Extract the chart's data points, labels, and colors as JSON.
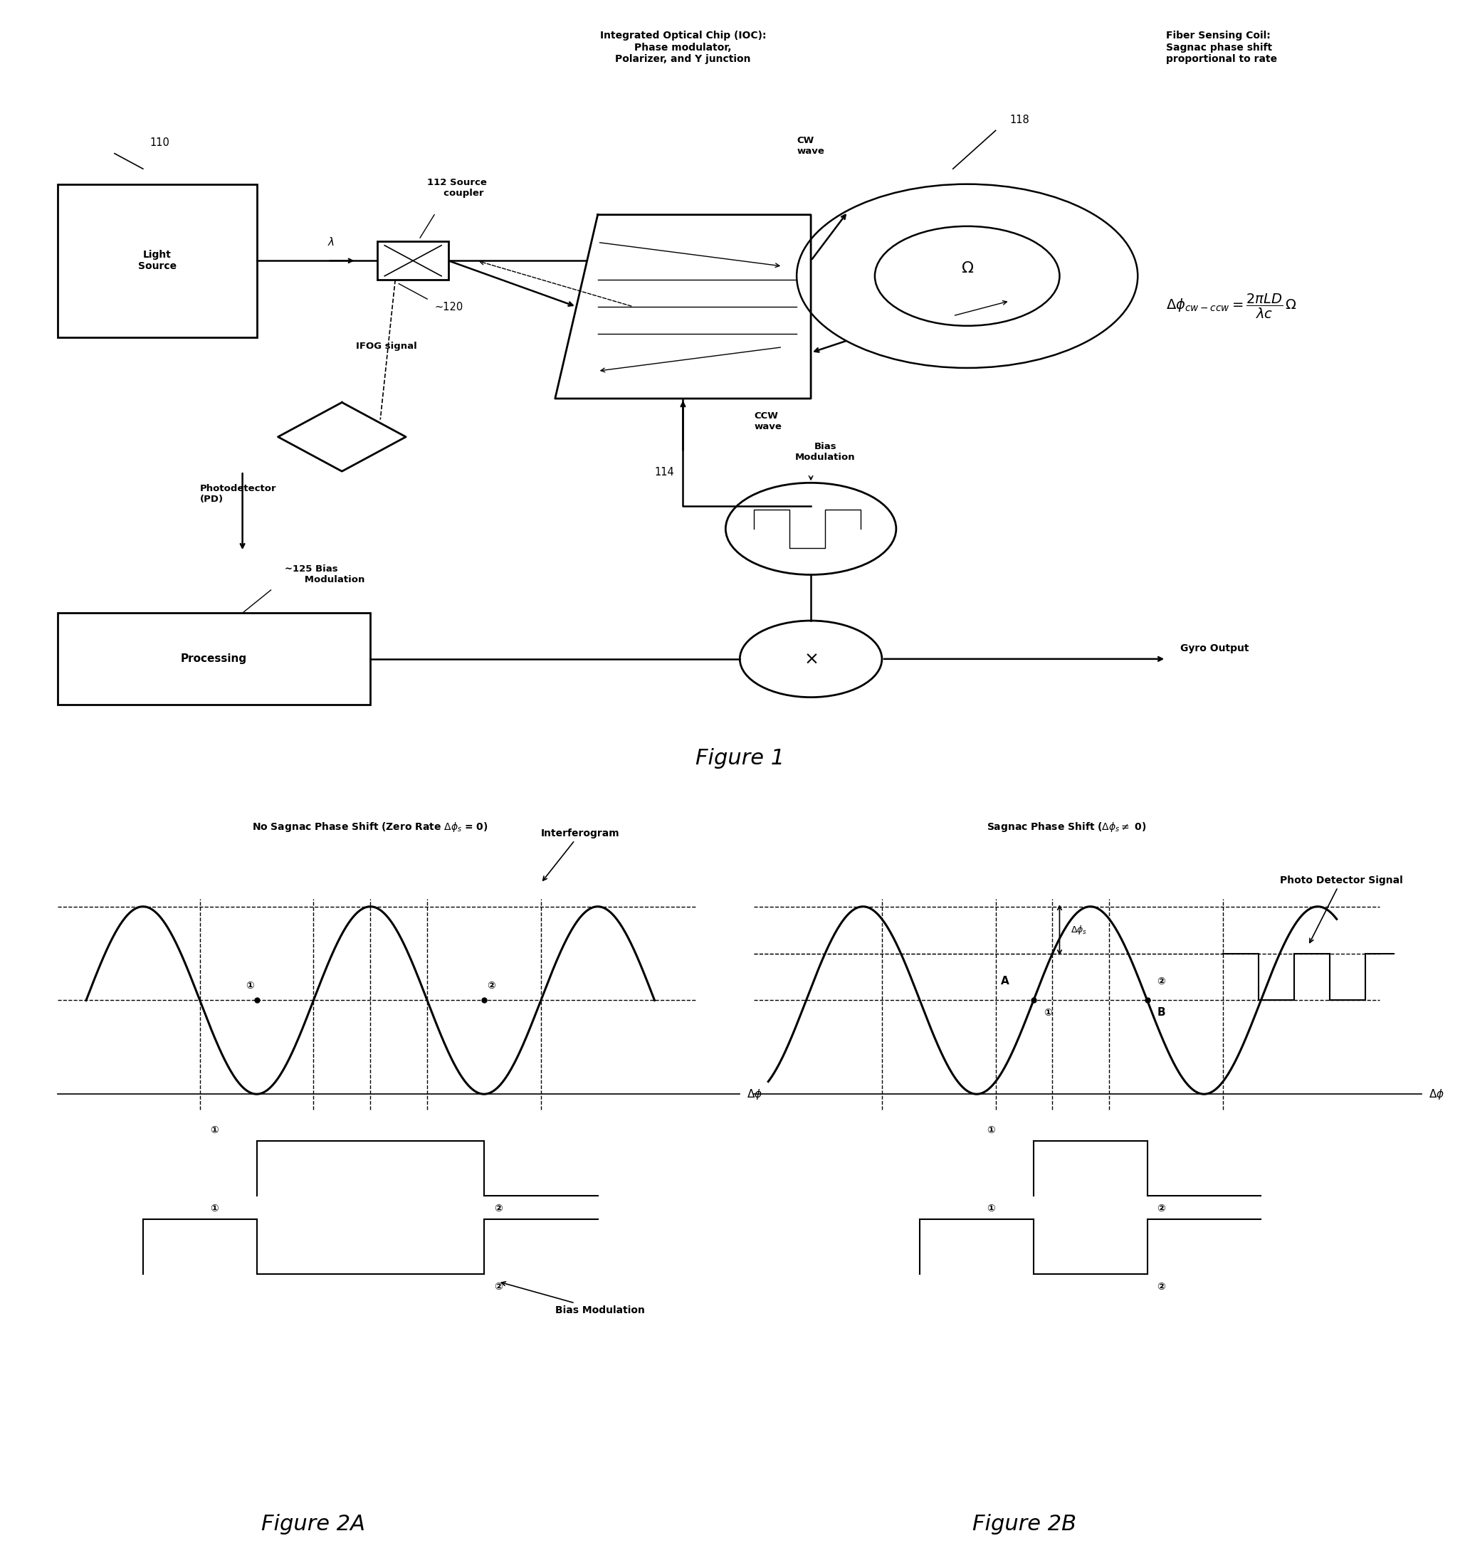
{
  "fig_width": 20.58,
  "fig_height": 21.96,
  "bg_color": "#ffffff",
  "fig1_title": "Figure 1",
  "fig2a_title": "Figure 2A",
  "fig2b_title": "Figure 2B",
  "ioc_label": "Integrated Optical Chip (IOC):\nPhase modulator,\nPolarizer, and Y junction",
  "fiber_coil_label": "Fiber Sensing Coil:\nSagnac phase shift\nproportional to rate",
  "label_110": "110",
  "label_112": "112",
  "label_114": "114",
  "label_118": "118",
  "label_120": "120",
  "label_125": "125",
  "text_light_source": "Light\nSource",
  "text_source_coupler": "Source\ncoupler",
  "text_photodetector": "Photodetector\n(PD)",
  "text_ifog_signal": "IFOG signal",
  "text_bias_mod": "Bias\nModulation",
  "text_processing": "Processing",
  "text_gyro_output": "Gyro Output",
  "text_cw_wave": "CW\nwave",
  "text_ccw_wave": "CCW\nwave",
  "fig2a_title_label": "No Sagnac Phase Shift (Zero Rate Δφs = 0)",
  "fig2b_title_label": "Sagnac Phase Shift (Δφs≠ 0)",
  "text_interferogram": "Interferogram",
  "text_bias_modulation": "Bias Modulation",
  "text_photo_detector_signal": "Photo Detector Signal",
  "text_delta_phi": "Δφ"
}
